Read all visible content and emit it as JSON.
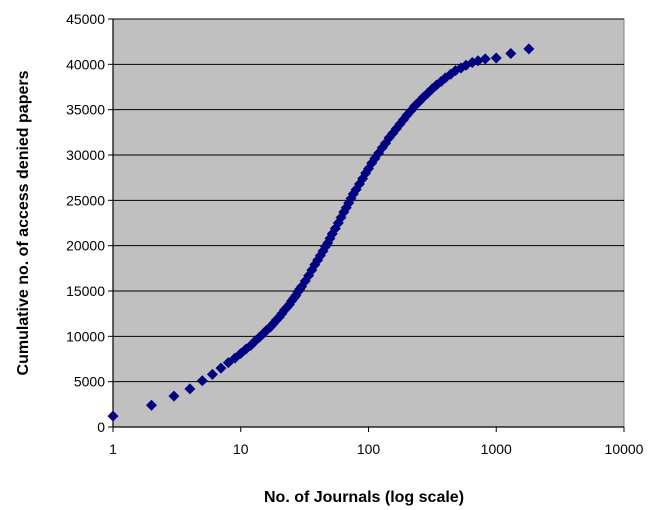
{
  "chart_data": {
    "type": "scatter",
    "title": "",
    "xlabel": "No. of Journals (log scale)",
    "ylabel": "Cumulative no. of access denied papers",
    "x_scale": "log",
    "xlim": [
      1,
      10000
    ],
    "ylim": [
      0,
      45000
    ],
    "x_ticks": [
      "1",
      "10",
      "100",
      "1000",
      "10000"
    ],
    "y_ticks": [
      "0",
      "5000",
      "10000",
      "15000",
      "20000",
      "25000",
      "30000",
      "35000",
      "40000",
      "45000"
    ],
    "grid": "horizontal",
    "legend": "none",
    "plot_background": "#c0c0c0",
    "marker": "diamond",
    "marker_color": "#000080",
    "series": [
      {
        "points": [
          [
            1,
            1200
          ],
          [
            2,
            2400
          ],
          [
            3,
            3400
          ],
          [
            4,
            4200
          ],
          [
            5,
            5100
          ],
          [
            6,
            5800
          ],
          [
            7,
            6500
          ],
          [
            8,
            7100
          ],
          [
            9,
            7600
          ],
          [
            10,
            8100
          ],
          [
            11,
            8600
          ],
          [
            12,
            9000
          ],
          [
            13,
            9500
          ],
          [
            14,
            9900
          ],
          [
            15,
            10300
          ],
          [
            16,
            10700
          ],
          [
            17,
            11000
          ],
          [
            18,
            11400
          ],
          [
            19,
            11800
          ],
          [
            20,
            12100
          ],
          [
            21,
            12500
          ],
          [
            22,
            12900
          ],
          [
            23,
            13200
          ],
          [
            24,
            13500
          ],
          [
            25,
            13900
          ],
          [
            26,
            14200
          ],
          [
            27,
            14500
          ],
          [
            28,
            14900
          ],
          [
            29,
            15200
          ],
          [
            30,
            15500
          ],
          [
            32,
            16100
          ],
          [
            34,
            16700
          ],
          [
            36,
            17300
          ],
          [
            38,
            17900
          ],
          [
            40,
            18400
          ],
          [
            42,
            18900
          ],
          [
            44,
            19400
          ],
          [
            46,
            19900
          ],
          [
            48,
            20300
          ],
          [
            50,
            20800
          ],
          [
            52,
            21300
          ],
          [
            55,
            21900
          ],
          [
            58,
            22500
          ],
          [
            61,
            23100
          ],
          [
            64,
            23700
          ],
          [
            67,
            24200
          ],
          [
            70,
            24700
          ],
          [
            73,
            25200
          ],
          [
            76,
            25700
          ],
          [
            80,
            26200
          ],
          [
            85,
            26800
          ],
          [
            90,
            27400
          ],
          [
            95,
            28000
          ],
          [
            100,
            28500
          ],
          [
            106,
            29100
          ],
          [
            112,
            29600
          ],
          [
            120,
            30200
          ],
          [
            128,
            30800
          ],
          [
            136,
            31300
          ],
          [
            145,
            31900
          ],
          [
            155,
            32400
          ],
          [
            165,
            32900
          ],
          [
            176,
            33400
          ],
          [
            188,
            33900
          ],
          [
            200,
            34400
          ],
          [
            215,
            34900
          ],
          [
            230,
            35400
          ],
          [
            250,
            35900
          ],
          [
            270,
            36400
          ],
          [
            290,
            36800
          ],
          [
            315,
            37300
          ],
          [
            340,
            37700
          ],
          [
            370,
            38100
          ],
          [
            400,
            38500
          ],
          [
            440,
            38900
          ],
          [
            480,
            39300
          ],
          [
            530,
            39600
          ],
          [
            580,
            39900
          ],
          [
            650,
            40200
          ],
          [
            720,
            40400
          ],
          [
            820,
            40600
          ],
          [
            1000,
            40700
          ],
          [
            1300,
            41200
          ],
          [
            1800,
            41700
          ]
        ]
      }
    ]
  }
}
